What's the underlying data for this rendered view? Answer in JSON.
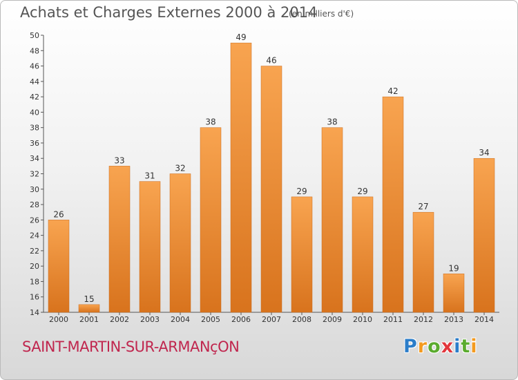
{
  "header": {
    "title": "Achats et Charges Externes 2000 à 2014",
    "unit": "(en milliers d'€)"
  },
  "footer": {
    "commune": "SAINT-MARTIN-SUR-ARMANçON",
    "logo": "Proxiti"
  },
  "colors": {
    "bar_light": "#f8a450",
    "bar_dark": "#d8731d",
    "commune_text": "#c0264e",
    "logo_letters": [
      "#2b7dc9",
      "#f39a1f",
      "#5aab2e",
      "#e2363c",
      "#2b7dc9",
      "#5aab2e",
      "#f39a1f"
    ]
  },
  "chart_data": {
    "type": "bar",
    "title": "Achats et Charges Externes 2000 à 2014",
    "subtitle": "(en milliers d'€)",
    "categories": [
      "2000",
      "2001",
      "2002",
      "2003",
      "2004",
      "2005",
      "2006",
      "2007",
      "2008",
      "2009",
      "2010",
      "2011",
      "2012",
      "2013",
      "2014"
    ],
    "values": [
      26,
      15,
      33,
      31,
      32,
      38,
      49,
      46,
      29,
      38,
      29,
      42,
      27,
      19,
      34
    ],
    "ylim": [
      14,
      50
    ],
    "yticks": [
      14,
      16,
      18,
      20,
      22,
      24,
      26,
      28,
      30,
      32,
      34,
      36,
      38,
      40,
      42,
      44,
      46,
      48,
      50
    ],
    "grid": false,
    "legend": "none"
  }
}
